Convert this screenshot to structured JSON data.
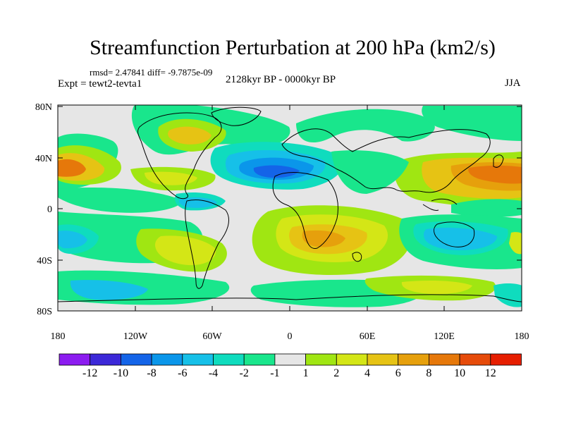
{
  "figure": {
    "title": "Streamfunction Perturbation at 200 hPa (km2/s)",
    "stats": "rmsd= 2.47841 diff= -9.7875e-09",
    "experiment": "Expt = tewt2-tevta1",
    "period": "2128kyr BP - 0000kyr BP",
    "season": "JJA"
  },
  "map": {
    "lat_ticks": [
      "80N",
      "40N",
      "0",
      "40S",
      "80S"
    ],
    "lon_ticks": [
      "180",
      "120W",
      "60W",
      "0",
      "60E",
      "120E",
      "180"
    ]
  },
  "colorbar": {
    "labels": [
      "-12",
      "-10",
      "-8",
      "-6",
      "-4",
      "-2",
      "-1",
      "1",
      "2",
      "4",
      "6",
      "8",
      "10",
      "12"
    ],
    "colors": [
      "#8c1cf0",
      "#3c28d8",
      "#1464e8",
      "#0a96ea",
      "#16c0e8",
      "#0fdcbe",
      "#19e68c",
      "#e6e6e6",
      "#a0e612",
      "#d4e616",
      "#e6c314",
      "#e6a00c",
      "#e6780a",
      "#e64b0a",
      "#e61e00"
    ]
  }
}
